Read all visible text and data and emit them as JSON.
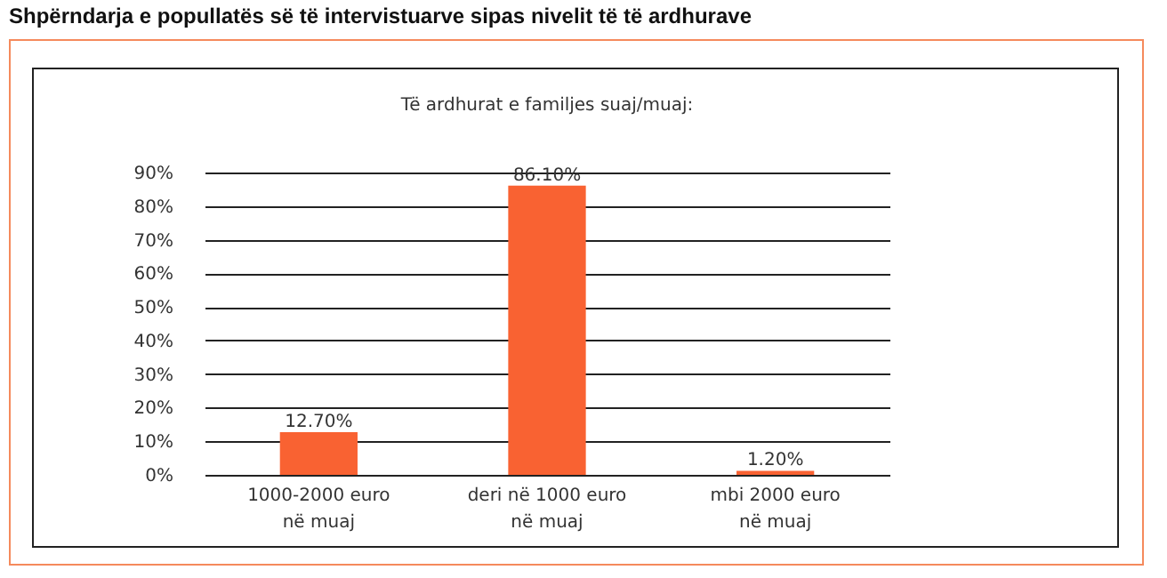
{
  "chart_data": {
    "type": "bar",
    "title": "Shpërndarja e popullatës së të intervistuarve sipas nivelit të të ardhurave",
    "subtitle": "Të ardhurat e familjes suaj/muaj:",
    "categories": [
      "1000-2000 euro\nnë muaj",
      "deri në 1000 euro\nnë muaj",
      "mbi 2000 euro\nnë muaj"
    ],
    "values": [
      12.7,
      86.1,
      1.2
    ],
    "color": "#f96232",
    "value_labels": [
      "12.70%",
      "86.10%",
      "1.20%"
    ],
    "ylim": [
      0,
      90
    ],
    "yticks": [
      {
        "value": 0,
        "label": "0%"
      },
      {
        "value": 10,
        "label": "10%"
      },
      {
        "value": 20,
        "label": "20%"
      },
      {
        "value": 30,
        "label": "30%"
      },
      {
        "value": 40,
        "label": "40%"
      },
      {
        "value": 50,
        "label": "50%"
      },
      {
        "value": 60,
        "label": "60%"
      },
      {
        "value": 70,
        "label": "70%"
      },
      {
        "value": 80,
        "label": "80%"
      },
      {
        "value": 90,
        "label": "90%"
      }
    ],
    "grid": "y"
  }
}
